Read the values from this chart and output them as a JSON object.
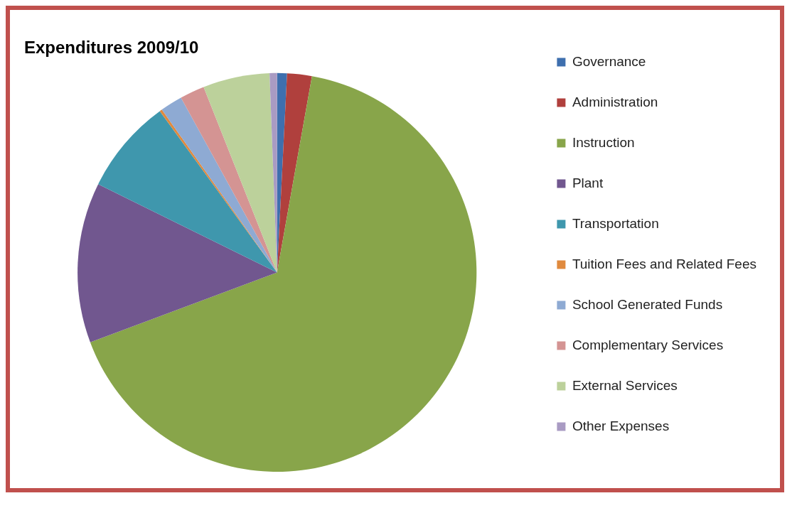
{
  "chart_data": {
    "type": "pie",
    "title": "Expenditures 2009/10",
    "categories": [
      "Governance",
      "Administration",
      "Instruction",
      "Plant",
      "Transportation",
      "Tuition Fees and Related Fees",
      "School Generated Funds",
      "Complementary Services",
      "External Services",
      "Other Expenses"
    ],
    "values": [
      0.8,
      2.0,
      66.5,
      13.0,
      7.7,
      0.2,
      1.8,
      2.0,
      5.4,
      0.6
    ],
    "colors": [
      "#3e6fae",
      "#b0403d",
      "#88a54a",
      "#71578f",
      "#3f97ad",
      "#e08a3e",
      "#8eaad3",
      "#d49493",
      "#bcd19b",
      "#a99bc3"
    ],
    "legend": "right"
  }
}
